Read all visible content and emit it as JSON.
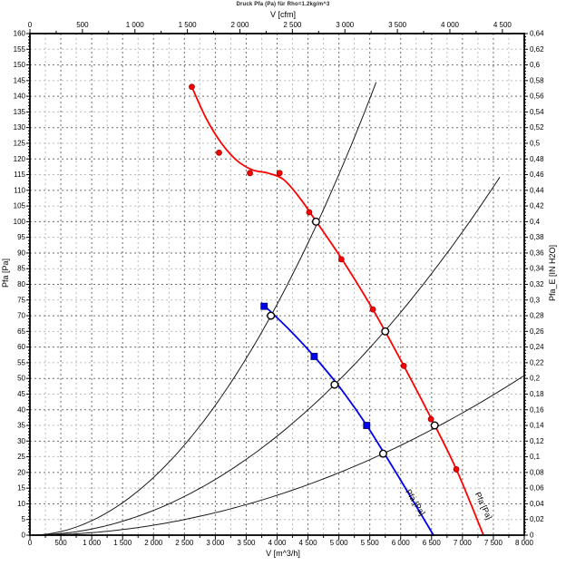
{
  "title": "Druck Pfa (Pa) für Rho=1.2kg/m^3",
  "chart_data": {
    "type": "line",
    "title": "Druck Pfa (Pa) für Rho=1.2kg/m^3",
    "grid": {
      "v_minor_step": 250,
      "v_major_step": 500,
      "h_minor_step": 5,
      "h_major_step": 10,
      "major_color": "#6e6e6e",
      "minor_color": "#bcbcbc",
      "dash": "2 3"
    },
    "axes": {
      "top": {
        "label": "V [cfm]",
        "min": 0,
        "tick_step": 500,
        "minor_step": 250,
        "unit_to_m3h": 1.69901,
        "tick_labels": [
          "0",
          "500",
          "1 000",
          "1 500",
          "2 000",
          "2 500",
          "3 000",
          "3 500",
          "4 000",
          "4 500"
        ]
      },
      "bottom": {
        "label": "V [m^3/h]",
        "min": 0,
        "max": 8000,
        "tick_step": 500,
        "minor_step": 250,
        "tick_labels": [
          "0",
          "500",
          "1 000",
          "1 500",
          "2 000",
          "2 500",
          "3 000",
          "3 500",
          "4 000",
          "4 500",
          "5 000",
          "5 500",
          "6 000",
          "6 500",
          "7 000",
          "7 500",
          "8 000"
        ]
      },
      "left": {
        "label": "Pfa [Pa]",
        "min": 0,
        "max": 160,
        "tick_step": 5,
        "minor_step": 1,
        "tick_labels": [
          "160",
          "155",
          "150",
          "145",
          "140",
          "135",
          "130",
          "125",
          "120",
          "115",
          "110",
          "105",
          "100",
          "95",
          "90",
          "85",
          "80",
          "75",
          "70",
          "65",
          "60",
          "55",
          "50",
          "45",
          "40",
          "35",
          "30",
          "25",
          "20",
          "15",
          "10",
          "5",
          "0"
        ]
      },
      "right": {
        "label": "Pfa_E [IN H2O]",
        "min": 0,
        "max": 0.64,
        "tick_step": 0.02,
        "minor_step": 0.004,
        "tick_labels": [
          "0,64",
          "0,62",
          "0,6",
          "0,58",
          "0,56",
          "0,54",
          "0,52",
          "0,5",
          "0,48",
          "0,46",
          "0,44",
          "0,42",
          "0,4",
          "0,38",
          "0,36",
          "0,34",
          "0,32",
          "0,3",
          "0,28",
          "0,26",
          "0,24",
          "0,22",
          "0,2",
          "0,18",
          "0,16",
          "0,14",
          "0,12",
          "0,1",
          "0,08",
          "0,06",
          "0,04",
          "0,02",
          "0"
        ]
      }
    },
    "series": [
      {
        "id": "fan-curve-high-speed",
        "color": "#ff0000",
        "marker": "filled-circle",
        "marker_points": [
          [
            2620,
            143
          ],
          [
            3060,
            122
          ],
          [
            3560,
            115.5
          ],
          [
            4040,
            115.5
          ],
          [
            4520,
            103
          ],
          [
            5040,
            88
          ],
          [
            5550,
            72
          ],
          [
            6050,
            54
          ],
          [
            6490,
            37
          ],
          [
            6900,
            21
          ]
        ],
        "curve_points": [
          [
            2620,
            143
          ],
          [
            2850,
            133
          ],
          [
            3100,
            125
          ],
          [
            3350,
            119.5
          ],
          [
            3600,
            116.5
          ],
          [
            3850,
            115.5
          ],
          [
            4100,
            113.5
          ],
          [
            4350,
            108
          ],
          [
            4600,
            101
          ],
          [
            5050,
            88
          ],
          [
            5550,
            72
          ],
          [
            6050,
            54
          ],
          [
            6500,
            37
          ],
          [
            6900,
            21
          ],
          [
            7340,
            0
          ]
        ],
        "label": {
          "text": "Pfa [Pa]",
          "v": 7300,
          "p": 9,
          "angle": 65
        }
      },
      {
        "id": "fan-curve-low-speed",
        "color": "#0000ee",
        "marker": "filled-square",
        "marker_points": [
          [
            3790,
            73
          ],
          [
            4600,
            57
          ],
          [
            5450,
            35
          ]
        ],
        "curve_points": [
          [
            3750,
            74
          ],
          [
            4200,
            65.5
          ],
          [
            4600,
            57
          ],
          [
            5020,
            47
          ],
          [
            5450,
            35
          ],
          [
            6000,
            17.5
          ],
          [
            6530,
            0
          ]
        ],
        "label": {
          "text": "Pfa [Pa]",
          "v": 6200,
          "p": 10,
          "angle": 58
        }
      }
    ],
    "system_curves": [
      {
        "id": "system-curve-1",
        "k": 4.6023e-06,
        "v_end": 5690
      },
      {
        "id": "system-curve-2",
        "k": 1.9749e-06,
        "v_end": 7680
      },
      {
        "id": "system-curve-3",
        "k": 7.958e-07,
        "v_end": 8000
      }
    ],
    "operating_points": [
      [
        3900,
        70
      ],
      [
        4630,
        100
      ],
      [
        4930,
        48
      ],
      [
        5750,
        65
      ],
      [
        5716,
        26
      ],
      [
        6550,
        35
      ]
    ],
    "colors": {
      "fan_high": "#ff0000",
      "fan_low": "#0000ee",
      "system_curve": "#1a1a1a",
      "axis": "#000000"
    }
  }
}
